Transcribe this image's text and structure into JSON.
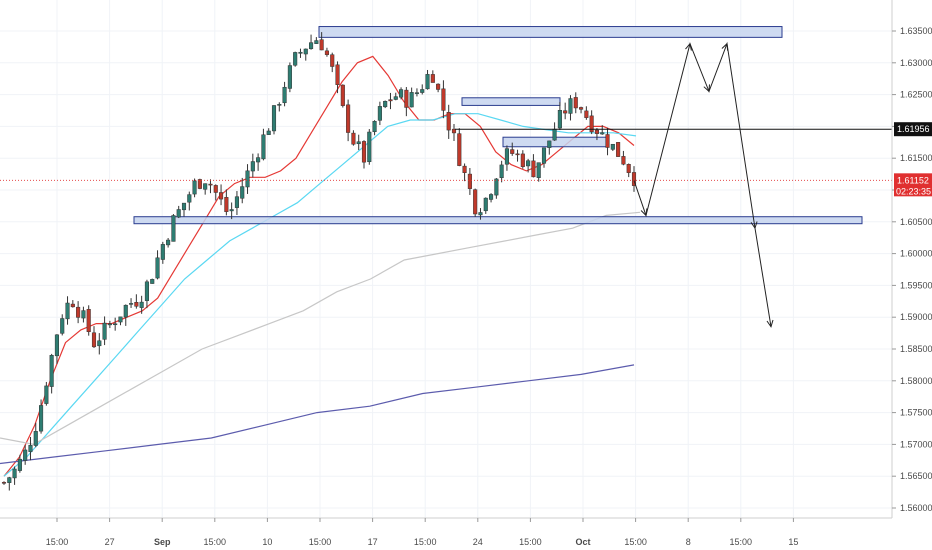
{
  "colors": {
    "background": "#ffffff",
    "grid": "#f0f3f7",
    "up_candle": "#2e7d72",
    "down_candle": "#c0392b",
    "wick": "#333333",
    "ma_fast": "#e53935",
    "ma_mid": "#5ad8f2",
    "ma_slow": "#c7c7c7",
    "ma_long": "#5c5cad",
    "zone_fill": "#c6d3ef",
    "zone_stroke": "#2a3c8f",
    "projection": "#222222",
    "current_price_badge": "#e03030",
    "level_badge": "#111111"
  },
  "chart_data": {
    "type": "candlestick",
    "title": "",
    "xlabel": "",
    "ylabel": "",
    "grid": true,
    "price_axis": "right",
    "ylim": [
      1.56,
      1.636
    ],
    "x_ticks": [
      "15:00",
      "27",
      "Sep",
      "15:00",
      "10",
      "15:00",
      "17",
      "15:00",
      "24",
      "15:00",
      "Oct",
      "15:00",
      "8",
      "15:00",
      "15"
    ],
    "y_ticks": [
      "1.63500",
      "1.63000",
      "1.62500",
      "1.62000",
      "1.61500",
      "1.61000",
      "1.60500",
      "1.60000",
      "1.59500",
      "1.59000",
      "1.58500",
      "1.58000",
      "1.57500",
      "1.57000",
      "1.56500",
      "1.56000"
    ],
    "current_price": {
      "label": "1.61152",
      "value": 1.61152,
      "countdown": "02:23:35"
    },
    "horizontal_level": {
      "label": "1.61956",
      "value": 1.61956
    },
    "price_path": [
      1.564,
      1.566,
      1.569,
      1.574,
      1.582,
      1.59,
      1.593,
      1.59,
      1.586,
      1.588,
      1.59,
      1.592,
      1.593,
      1.596,
      1.601,
      1.605,
      1.608,
      1.611,
      1.612,
      1.609,
      1.606,
      1.61,
      1.614,
      1.618,
      1.622,
      1.627,
      1.631,
      1.633,
      1.634,
      1.63,
      1.623,
      1.618,
      1.615,
      1.621,
      1.624,
      1.625,
      1.624,
      1.626,
      1.629,
      1.623,
      1.618,
      1.612,
      1.607,
      1.609,
      1.614,
      1.616,
      1.615,
      1.613,
      1.616,
      1.62,
      1.623,
      1.624,
      1.621,
      1.619,
      1.617,
      1.615,
      1.612
    ],
    "moving_averages": [
      {
        "color_key": "ma_fast",
        "values": [
          1.565,
          1.568,
          1.573,
          1.58,
          1.586,
          1.588,
          1.589,
          1.589,
          1.59,
          1.591,
          1.593,
          1.597,
          1.601,
          1.605,
          1.609,
          1.611,
          1.612,
          1.612,
          1.613,
          1.615,
          1.619,
          1.623,
          1.627,
          1.63,
          1.631,
          1.628,
          1.624,
          1.621,
          1.621,
          1.622,
          1.622,
          1.62,
          1.616,
          1.614,
          1.613,
          1.614,
          1.616,
          1.618,
          1.62,
          1.62,
          1.619,
          1.617
        ]
      },
      {
        "color_key": "ma_mid",
        "values": [
          1.565,
          1.568,
          1.572,
          1.576,
          1.58,
          1.584,
          1.588,
          1.592,
          1.596,
          1.599,
          1.602,
          1.604,
          1.606,
          1.608,
          1.611,
          1.614,
          1.617,
          1.62,
          1.621,
          1.621,
          1.622,
          1.622,
          1.621,
          1.62,
          1.6195,
          1.619,
          1.619,
          1.619,
          1.6185
        ]
      },
      {
        "color_key": "ma_slow",
        "values": [
          1.571,
          1.57,
          1.573,
          1.576,
          1.579,
          1.582,
          1.585,
          1.587,
          1.589,
          1.591,
          1.594,
          1.596,
          1.599,
          1.6,
          1.601,
          1.602,
          1.603,
          1.604,
          1.606,
          1.6065
        ]
      },
      {
        "color_key": "ma_long",
        "values": [
          1.567,
          1.568,
          1.569,
          1.57,
          1.571,
          1.573,
          1.575,
          1.576,
          1.578,
          1.579,
          1.58,
          1.581,
          1.5825
        ]
      }
    ],
    "zones": [
      {
        "top": 1.6357,
        "bottom": 1.634
      },
      {
        "top": 1.6058,
        "bottom": 1.6047
      },
      {
        "top": 1.6245,
        "bottom": 1.6233
      },
      {
        "top": 1.6183,
        "bottom": 1.6168
      }
    ],
    "projection_path": [
      1.6115,
      1.606,
      1.633,
      1.6255,
      1.633,
      1.604,
      1.5885
    ]
  }
}
